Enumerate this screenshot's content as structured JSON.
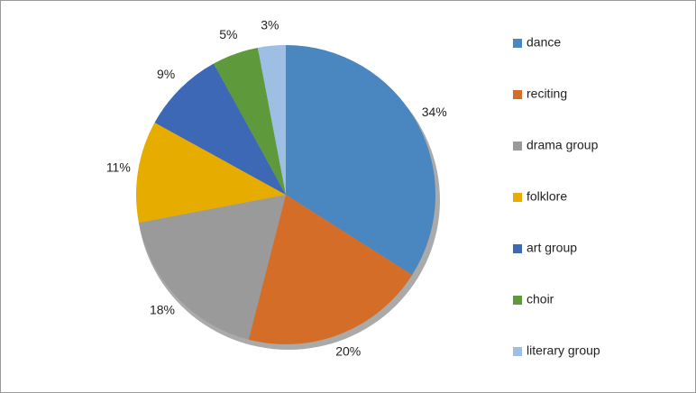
{
  "chart_data": {
    "type": "pie",
    "categories": [
      "dance",
      "reciting",
      "drama group",
      "folklore",
      "art group",
      "choir",
      "literary group"
    ],
    "values": [
      34,
      20,
      18,
      11,
      9,
      5,
      3
    ],
    "value_labels": [
      "34%",
      "20%",
      "18%",
      "11%",
      "9%",
      "5%",
      "3%"
    ],
    "colors": [
      "#4a86bf",
      "#d46d27",
      "#9a9a9a",
      "#e6ad00",
      "#3d68b5",
      "#5e9a3c",
      "#9cbfe3"
    ],
    "legend": "right"
  }
}
